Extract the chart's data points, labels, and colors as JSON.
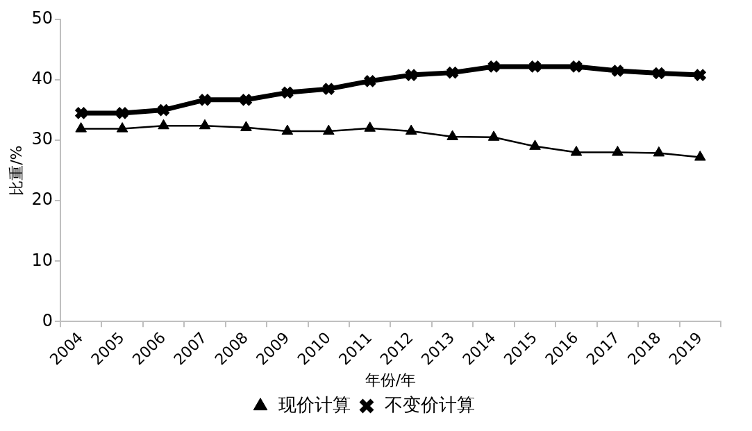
{
  "chart_data": {
    "type": "line",
    "xlabel": "年份/年",
    "ylabel": "比重/%",
    "categories": [
      "2004",
      "2005",
      "2006",
      "2007",
      "2008",
      "2009",
      "2010",
      "2011",
      "2012",
      "2013",
      "2014",
      "2015",
      "2016",
      "2017",
      "2018",
      "2019"
    ],
    "series": [
      {
        "name": "现价计算",
        "color": "#000000",
        "marker": "triangle",
        "values": [
          31.9,
          31.9,
          32.4,
          32.4,
          32.1,
          31.5,
          31.5,
          32.0,
          31.5,
          30.6,
          30.5,
          29.0,
          28.0,
          28.0,
          27.9,
          27.2
        ]
      },
      {
        "name": "不变价计算",
        "color": "#000000",
        "marker": "cross",
        "values": [
          34.5,
          34.5,
          35.0,
          36.7,
          36.7,
          37.9,
          38.5,
          39.8,
          40.8,
          41.2,
          42.2,
          42.2,
          42.2,
          41.5,
          41.1,
          40.8
        ]
      }
    ],
    "ylim": [
      0,
      50
    ],
    "yticks": [
      0,
      10,
      20,
      30,
      40,
      50
    ],
    "grid": false,
    "legend": "bottom"
  }
}
